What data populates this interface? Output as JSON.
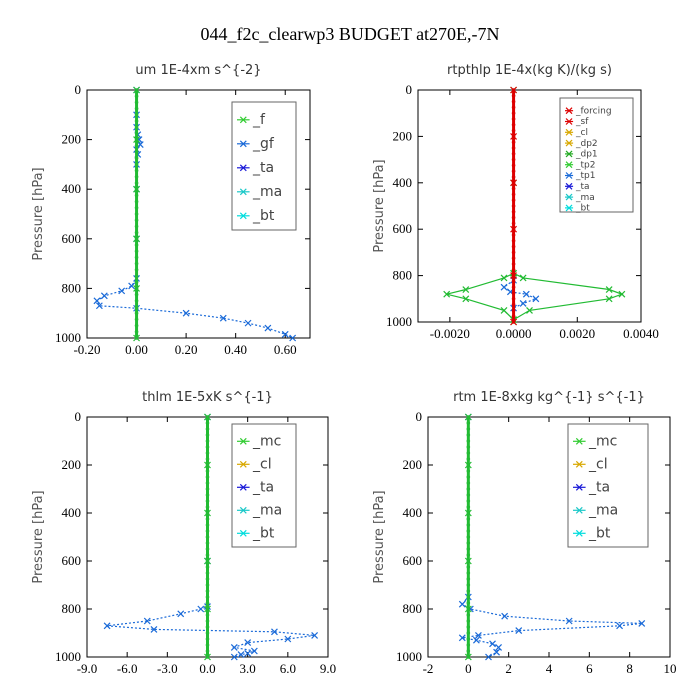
{
  "figure_title": "044_f2c_clearwp3  BUDGET at270E,-7N",
  "colors": {
    "forcing": "#dd0000",
    "sf": "#dd0000",
    "cl": "#d8a800",
    "dp2": "#d8a800",
    "dp1": "#22aa22",
    "tp2": "#33cc33",
    "tp1": "#1a6ad8",
    "ta": "#1a1ad8",
    "ma": "#1ac8c8",
    "bt": "#00dddd",
    "f": "#33cc33",
    "gf": "#1a6ad8",
    "mc": "#33cc33",
    "line_blue": "#1a6ad8",
    "line_green": "#22bb33"
  },
  "chart_data": [
    {
      "type": "line",
      "title": "um   1E-4xm  s^{-2}",
      "ylabel": "Pressure [hPa]",
      "xlim": [
        -0.2,
        0.7
      ],
      "ylim": [
        1000,
        0
      ],
      "xticks": [
        -0.2,
        0.0,
        0.2,
        0.4,
        0.6
      ],
      "xticklabels": [
        "-0.20",
        "0.00",
        "0.20",
        "0.40",
        "0.60"
      ],
      "yticks": [
        0,
        200,
        400,
        600,
        800,
        1000
      ],
      "yticklabels": [
        "0",
        "200",
        "400",
        "600",
        "800",
        "1000"
      ],
      "legend": [
        "_f",
        "_gf",
        "_ta",
        "_ma",
        "_bt"
      ],
      "series": [
        {
          "key": "bt",
          "color_key": "line_blue",
          "x": [
            0.0,
            0.0,
            0.0,
            0.005,
            0.01,
            0.015,
            0.0,
            0.005,
            0.0,
            0.0,
            0.0,
            0.0,
            -0.02,
            -0.06,
            -0.13,
            -0.16,
            -0.15,
            0.0,
            0.2,
            0.35,
            0.45,
            0.53,
            0.6,
            0.63
          ],
          "y": [
            0,
            100,
            150,
            180,
            200,
            220,
            240,
            260,
            300,
            400,
            600,
            760,
            790,
            810,
            830,
            850,
            870,
            880,
            900,
            920,
            940,
            960,
            985,
            1000
          ]
        },
        {
          "key": "f",
          "color_key": "line_green",
          "x": [
            0.0,
            0.0,
            0.0,
            0.0,
            0.0,
            0.0
          ],
          "y": [
            0,
            200,
            400,
            600,
            800,
            1000
          ]
        }
      ]
    },
    {
      "type": "line",
      "title": "rtpthlp   1E-4x(kg K)/(kg s)",
      "ylabel": "Pressure [hPa]",
      "xlim": [
        -0.003,
        0.004
      ],
      "ylim": [
        1000,
        0
      ],
      "xticks": [
        -0.002,
        0.0,
        0.002,
        0.004
      ],
      "xticklabels": [
        "-0.0020",
        "0.0000",
        "0.0020",
        "0.0040"
      ],
      "yticks": [
        0,
        200,
        400,
        600,
        800,
        1000
      ],
      "yticklabels": [
        "0",
        "200",
        "400",
        "600",
        "800",
        "1000"
      ],
      "legend": [
        "_forcing",
        "_sf",
        "_cl",
        "_dp2",
        "_dp1",
        "_tp2",
        "_tp1",
        "_ta",
        "_ma",
        "_bt"
      ],
      "series": [
        {
          "key": "tp2",
          "color_key": "line_green",
          "x": [
            0.0,
            0.0,
            0.0,
            0.0003,
            0.003,
            0.0034,
            0.003,
            0.0005,
            0.0,
            0.0
          ],
          "y": [
            0,
            400,
            790,
            810,
            860,
            880,
            900,
            950,
            990,
            1000
          ]
        },
        {
          "key": "tp2b",
          "color_key": "line_green",
          "x": [
            0.0,
            -0.0003,
            -0.0015,
            -0.0021,
            -0.0015,
            -0.0003,
            0.0
          ],
          "y": [
            790,
            810,
            860,
            880,
            900,
            950,
            990
          ]
        },
        {
          "key": "ta",
          "color_key": "line_blue",
          "x": [
            0.0,
            -0.0003,
            -0.0001,
            0.0004,
            0.0007,
            0.0003,
            0.0
          ],
          "y": [
            820,
            850,
            870,
            880,
            900,
            920,
            940
          ]
        },
        {
          "key": "forcing",
          "color_key": "forcing",
          "x": [
            0.0,
            0.0,
            0.0,
            0.0,
            0.0,
            0.0
          ],
          "y": [
            0,
            200,
            400,
            600,
            800,
            1000
          ]
        }
      ]
    },
    {
      "type": "line",
      "title": "thlm   1E-5xK  s^{-1}",
      "ylabel": "Pressure [hPa]",
      "xlim": [
        -9.0,
        9.0
      ],
      "ylim": [
        1000,
        0
      ],
      "xticks": [
        -9.0,
        -6.0,
        -3.0,
        0.0,
        3.0,
        6.0,
        9.0
      ],
      "xticklabels": [
        "-9.0",
        "-6.0",
        "-3.0",
        "0.0",
        "3.0",
        "6.0",
        "9.0"
      ],
      "yticks": [
        0,
        200,
        400,
        600,
        800,
        1000
      ],
      "yticklabels": [
        "0",
        "200",
        "400",
        "600",
        "800",
        "1000"
      ],
      "legend": [
        "_mc",
        "_cl",
        "_ta",
        "_ma",
        "_bt"
      ],
      "series": [
        {
          "key": "bt",
          "color_key": "line_blue",
          "x": [
            0.0,
            0.0,
            0.0,
            -0.5,
            -2.0,
            -4.5,
            -7.5,
            -4.0,
            5.0,
            8.0,
            6.0,
            3.0,
            2.0,
            3.5,
            3.0,
            2.5,
            2.0
          ],
          "y": [
            0,
            600,
            790,
            800,
            820,
            850,
            870,
            885,
            895,
            910,
            925,
            940,
            960,
            975,
            985,
            990,
            1000
          ]
        },
        {
          "key": "mc",
          "color_key": "line_green",
          "x": [
            0.0,
            0.0,
            0.0,
            0.0,
            0.0,
            0.0
          ],
          "y": [
            0,
            200,
            400,
            600,
            800,
            1000
          ]
        }
      ]
    },
    {
      "type": "line",
      "title": "rtm   1E-8xkg  kg^{-1} s^{-1}",
      "ylabel": "Pressure [hPa]",
      "xlim": [
        -2,
        10
      ],
      "ylim": [
        1000,
        0
      ],
      "xticks": [
        -2,
        0,
        2,
        4,
        6,
        8,
        10
      ],
      "xticklabels": [
        "-2",
        "0",
        "2",
        "4",
        "6",
        "8",
        "10"
      ],
      "yticks": [
        0,
        200,
        400,
        600,
        800,
        1000
      ],
      "yticklabels": [
        "0",
        "200",
        "400",
        "600",
        "800",
        "1000"
      ],
      "legend": [
        "_mc",
        "_cl",
        "_ta",
        "_ma",
        "_bt"
      ],
      "series": [
        {
          "key": "bt",
          "color_key": "line_blue",
          "x": [
            0.0,
            0.0,
            -0.3,
            0.1,
            1.8,
            5.0,
            8.6,
            7.5,
            2.5,
            0.5,
            -0.3,
            0.4,
            1.2,
            1.5,
            1.4,
            1.0
          ],
          "y": [
            0,
            750,
            780,
            800,
            830,
            850,
            860,
            870,
            890,
            910,
            920,
            930,
            945,
            960,
            980,
            1000
          ]
        },
        {
          "key": "mc",
          "color_key": "line_green",
          "x": [
            0.0,
            0.0,
            0.0,
            0.0,
            0.0,
            0.0
          ],
          "y": [
            0,
            200,
            400,
            600,
            800,
            1000
          ]
        }
      ]
    }
  ]
}
